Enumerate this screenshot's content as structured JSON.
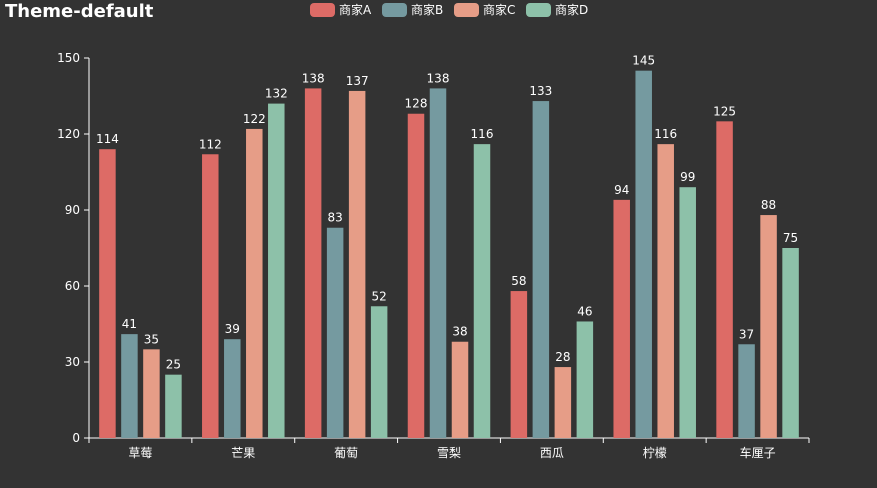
{
  "chart_data": {
    "type": "bar",
    "title": "Theme-default",
    "categories": [
      "草莓",
      "芒果",
      "葡萄",
      "雪梨",
      "西瓜",
      "柠檬",
      "车厘子"
    ],
    "series": [
      {
        "name": "商家A",
        "color": "#dd6b66",
        "values": [
          114,
          112,
          138,
          128,
          58,
          94,
          125
        ]
      },
      {
        "name": "商家B",
        "color": "#759aa0",
        "values": [
          41,
          39,
          83,
          138,
          133,
          145,
          37
        ]
      },
      {
        "name": "商家C",
        "color": "#e69d87",
        "values": [
          35,
          122,
          137,
          38,
          28,
          116,
          88
        ]
      },
      {
        "name": "商家D",
        "color": "#8dc1a9",
        "values": [
          25,
          132,
          52,
          116,
          46,
          99,
          75
        ]
      }
    ],
    "xlabel": "",
    "ylabel": "",
    "ylim": [
      0,
      150
    ],
    "yticks": [
      0,
      30,
      60,
      90,
      120,
      150
    ],
    "grid": false,
    "legend_position": "top-center"
  }
}
